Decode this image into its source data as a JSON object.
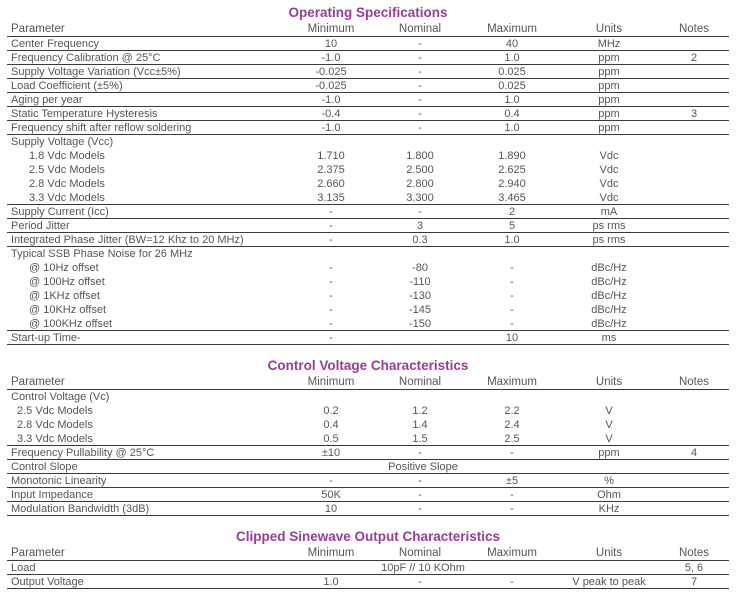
{
  "page": {
    "title_color": "#993d98",
    "text_color": "#55565a",
    "line_color": "#3b3b3d",
    "background": "#ffffff"
  },
  "columns": [
    "Parameter",
    "Minimum",
    "Nominal",
    "Maximum",
    "Units",
    "Notes"
  ],
  "tables": [
    {
      "title": "Operating Specifications",
      "rows": [
        {
          "param": "Center Frequency",
          "min": "10",
          "nom": "-",
          "max": "40",
          "units": "MHz",
          "notes": "",
          "indent": 0,
          "line": true
        },
        {
          "param": "Frequency Calibration @ 25°C",
          "min": "-1.0",
          "nom": "-",
          "max": "1.0",
          "units": "ppm",
          "notes": "2",
          "indent": 0,
          "line": true
        },
        {
          "param": "Supply Voltage Variation (Vcc±5%)",
          "min": "-0.025",
          "nom": "-",
          "max": "0.025",
          "units": "ppm",
          "notes": "",
          "indent": 0,
          "line": true
        },
        {
          "param": "Load Coefficient (±5%)",
          "min": "-0.025",
          "nom": "-",
          "max": "0.025",
          "units": "ppm",
          "notes": "",
          "indent": 0,
          "line": true
        },
        {
          "param": "Aging per year",
          "min": "-1.0",
          "nom": "-",
          "max": "1.0",
          "units": "ppm",
          "notes": "",
          "indent": 0,
          "line": true
        },
        {
          "param": "Static Temperature Hysteresis",
          "min": "-0.4",
          "nom": "-",
          "max": "0.4",
          "units": "ppm",
          "notes": "3",
          "indent": 0,
          "line": true
        },
        {
          "param": "Frequency shift after reflow soldering",
          "min": "-1.0",
          "nom": "-",
          "max": "1.0",
          "units": "ppm",
          "notes": "",
          "indent": 0,
          "line": true
        },
        {
          "param": "Supply Voltage (Vcc)",
          "min": "",
          "nom": "",
          "max": "",
          "units": "",
          "notes": "",
          "indent": 0,
          "line": false
        },
        {
          "param": "1.8 Vdc Models",
          "min": "1.710",
          "nom": "1.800",
          "max": "1.890",
          "units": "Vdc",
          "notes": "",
          "indent": 1,
          "line": false
        },
        {
          "param": "2.5 Vdc Models",
          "min": "2.375",
          "nom": "2.500",
          "max": "2.625",
          "units": "Vdc",
          "notes": "",
          "indent": 1,
          "line": false
        },
        {
          "param": "2.8 Vdc Models",
          "min": "2.660",
          "nom": "2.800",
          "max": "2.940",
          "units": "Vdc",
          "notes": "",
          "indent": 1,
          "line": false
        },
        {
          "param": "3.3 Vdc Models",
          "min": "3.135",
          "nom": "3.300",
          "max": "3.465",
          "units": "Vdc",
          "notes": "",
          "indent": 1,
          "line": true
        },
        {
          "param": "Supply Current (Icc)",
          "min": "-",
          "nom": "-",
          "max": "2",
          "units": "mA",
          "notes": "",
          "indent": 0,
          "line": true
        },
        {
          "param": "Period Jitter",
          "min": "-",
          "nom": "3",
          "max": "5",
          "units": "ps rms",
          "notes": "",
          "indent": 0,
          "line": true
        },
        {
          "param": "Integrated Phase Jitter (BW=12 Khz to 20 MHz)",
          "min": "-",
          "nom": "0.3",
          "max": "1.0",
          "units": "ps rms",
          "notes": "",
          "indent": 0,
          "line": true
        },
        {
          "param": "Typical SSB Phase Noise for 26 MHz",
          "min": "",
          "nom": "",
          "max": "",
          "units": "",
          "notes": "",
          "indent": 0,
          "line": false
        },
        {
          "param": "@ 10Hz offset",
          "min": "-",
          "nom": "-80",
          "max": "-",
          "units": "dBc/Hz",
          "notes": "",
          "indent": 1,
          "line": false
        },
        {
          "param": "@ 100Hz offset",
          "min": "-",
          "nom": "-110",
          "max": "-",
          "units": "dBc/Hz",
          "notes": "",
          "indent": 1,
          "line": false
        },
        {
          "param": "@ 1KHz offset",
          "min": "-",
          "nom": "-130",
          "max": "-",
          "units": "dBc/Hz",
          "notes": "",
          "indent": 1,
          "line": false
        },
        {
          "param": "@ 10KHz offset",
          "min": "-",
          "nom": "-145",
          "max": "-",
          "units": "dBc/Hz",
          "notes": "",
          "indent": 1,
          "line": false
        },
        {
          "param": "@ 100KHz offset",
          "min": "-",
          "nom": "-150",
          "max": "-",
          "units": "dBc/Hz",
          "notes": "",
          "indent": 1,
          "line": true
        },
        {
          "param": "Start-up Time-",
          "min": "-",
          "nom": "",
          "max": "10",
          "units": "ms",
          "notes": "",
          "indent": 0,
          "line": true
        }
      ]
    },
    {
      "title": "Control Voltage Characteristics",
      "rows": [
        {
          "param": "Control Voltage (Vc)",
          "min": "",
          "nom": "",
          "max": "",
          "units": "",
          "notes": "",
          "indent": 0,
          "line": false
        },
        {
          "param": "2.5 Vdc Models",
          "min": "0.2",
          "nom": "1.2",
          "max": "2.2",
          "units": "V",
          "notes": "",
          "indent": 1,
          "line": false
        },
        {
          "param": "2.8 Vdc Models",
          "min": "0.4",
          "nom": "1.4",
          "max": "2.4",
          "units": "V",
          "notes": "",
          "indent": 1,
          "line": false
        },
        {
          "param": "3.3 Vdc Models",
          "min": "0.5",
          "nom": "1.5",
          "max": "2.5",
          "units": "V",
          "notes": "",
          "indent": 1,
          "line": true
        },
        {
          "param": "Frequency Pullability @ 25°C",
          "min": "±10",
          "nom": "-",
          "max": "-",
          "units": "ppm",
          "notes": "4",
          "indent": 0,
          "line": true
        },
        {
          "param": "Control Slope",
          "span": "Positive Slope",
          "units": "",
          "notes": "",
          "indent": 0,
          "line": true
        },
        {
          "param": "Monotonic Linearity",
          "min": "-",
          "nom": "-",
          "max": "±5",
          "units": "%",
          "notes": "",
          "indent": 0,
          "line": true
        },
        {
          "param": "Input Impedance",
          "min": "50K",
          "nom": "-",
          "max": "-",
          "units": "Ohm",
          "notes": "",
          "indent": 0,
          "line": true
        },
        {
          "param": "Modulation Bandwidth (3dB)",
          "min": "10",
          "nom": "-",
          "max": "-",
          "units": "KHz",
          "notes": "",
          "indent": 0,
          "line": true
        }
      ]
    },
    {
      "title": "Clipped Sinewave Output Characteristics",
      "rows": [
        {
          "param": "Load",
          "span": "10pF // 10 KOhm",
          "units": "",
          "notes": "5, 6",
          "indent": 0,
          "line": true
        },
        {
          "param": "Output Voltage",
          "min": "1.0",
          "nom": "-",
          "max": "-",
          "units": "V peak to peak",
          "notes": "7",
          "indent": 0,
          "line": true
        }
      ]
    }
  ]
}
